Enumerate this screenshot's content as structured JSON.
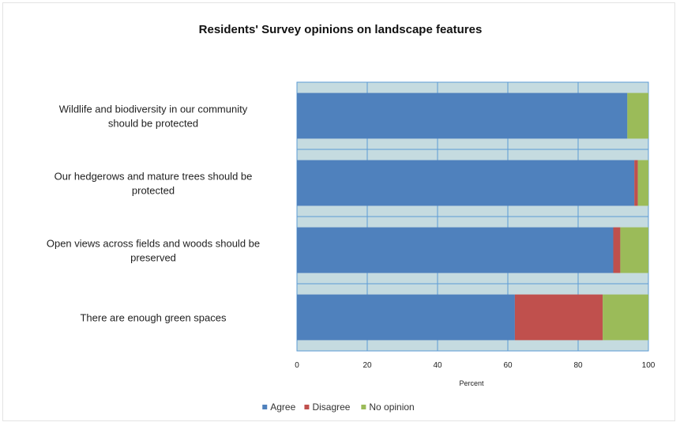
{
  "chart_data": {
    "type": "bar",
    "orientation": "horizontal",
    "stacked": true,
    "title": "Residents' Survey opinions on landscape features",
    "xlabel": "Percent",
    "ylabel": "",
    "xlim": [
      0,
      100
    ],
    "xticks": [
      0,
      20,
      40,
      60,
      80,
      100
    ],
    "grid": true,
    "legend_position": "bottom",
    "categories": [
      [
        "Wildlife and biodiversity in our community",
        "should be protected"
      ],
      [
        "Our hedgerows and mature trees should be",
        "protected"
      ],
      [
        "Open views across fields and woods should be",
        "preserved"
      ],
      [
        "There are enough green spaces"
      ]
    ],
    "series": [
      {
        "name": "Agree",
        "color": "#4f81bd",
        "values": [
          94,
          96,
          90,
          62
        ]
      },
      {
        "name": "Disagree",
        "color": "#c0504d",
        "values": [
          0,
          1,
          2,
          25
        ]
      },
      {
        "name": "No opinion",
        "color": "#9bbb59",
        "values": [
          6,
          3,
          8,
          13
        ]
      }
    ],
    "plot_background": "#c5dbe0",
    "grid_color": "#5b9bd5"
  }
}
